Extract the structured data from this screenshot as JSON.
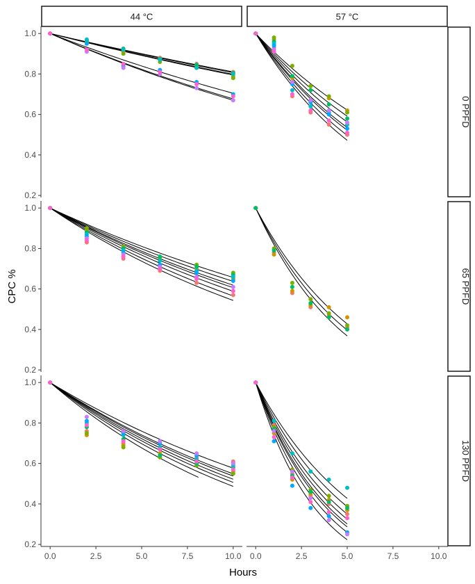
{
  "chart_data": {
    "type": "scatter",
    "title": "",
    "xlabel": "Hours",
    "ylabel": "CPC %",
    "xlim": [
      -0.5,
      10.5
    ],
    "ylim": [
      0.19,
      1.035
    ],
    "xticks": [
      0,
      2.5,
      5,
      7.5,
      10
    ],
    "x_tick_labels": [
      "0.0",
      "2.5",
      "5.0",
      "7.5",
      "10.0"
    ],
    "yticks": [
      0.2,
      0.4,
      0.6,
      0.8,
      1.0
    ],
    "y_tick_labels": [
      "0.2",
      "0.4",
      "0.6",
      "0.8",
      "1.0"
    ],
    "grid": false,
    "legend": "none",
    "col_facets": [
      "44 °C",
      "57 °C"
    ],
    "row_facets": [
      "0 PPFD",
      "65 PPFD",
      "130 PPFD"
    ],
    "point_colors": [
      "#F8766D",
      "#CD9600",
      "#7CAE00",
      "#00BE67",
      "#00BFC4",
      "#00A9FF",
      "#C77CFF",
      "#FF61CC"
    ],
    "panels": [
      {
        "col": 0,
        "row": 0,
        "x": [
          0,
          2,
          4,
          6,
          8,
          10
        ],
        "curve_end_x": 10,
        "curve_decay_rates": [
          0.021,
          0.0215,
          0.0225,
          0.023,
          0.035,
          0.039,
          0.04
        ],
        "points": [
          [
            1.0,
            0.96,
            0.92,
            0.88,
            0.85,
            0.81
          ],
          [
            1.0,
            0.955,
            0.91,
            0.87,
            0.84,
            0.79
          ],
          [
            1.0,
            0.95,
            0.9,
            0.86,
            0.83,
            0.78
          ],
          [
            1.0,
            0.965,
            0.925,
            0.875,
            0.845,
            0.805
          ],
          [
            1.0,
            0.97,
            0.92,
            0.87,
            0.83,
            0.8
          ],
          [
            1.0,
            0.95,
            0.84,
            0.82,
            0.76,
            0.7
          ],
          [
            1.0,
            0.91,
            0.83,
            0.8,
            0.73,
            0.67
          ],
          [
            1.0,
            0.92,
            0.85,
            0.81,
            0.75,
            0.69
          ]
        ]
      },
      {
        "col": 1,
        "row": 0,
        "x": [
          0,
          1,
          2,
          3,
          4,
          5
        ],
        "curve_end_x": 5,
        "curve_decay_rates": [
          0.095,
          0.105,
          0.115,
          0.125,
          0.13,
          0.14,
          0.15
        ],
        "points": [
          [
            1.0,
            0.93,
            0.69,
            0.61,
            0.55,
            0.5
          ],
          [
            1.0,
            0.97,
            0.78,
            0.72,
            0.68,
            0.62
          ],
          [
            1.0,
            0.98,
            0.84,
            0.74,
            0.69,
            0.61
          ],
          [
            1.0,
            0.96,
            0.79,
            0.72,
            0.65,
            0.58
          ],
          [
            1.0,
            0.95,
            0.72,
            0.64,
            0.61,
            0.55
          ],
          [
            1.0,
            0.94,
            0.75,
            0.66,
            0.6,
            0.53
          ],
          [
            1.0,
            0.92,
            0.76,
            0.67,
            0.62,
            0.56
          ],
          [
            1.0,
            0.91,
            0.7,
            0.62,
            0.57,
            0.51
          ]
        ]
      },
      {
        "col": 0,
        "row": 1,
        "x": [
          0,
          2,
          4,
          6,
          8,
          10
        ],
        "curve_end_x": 10,
        "curve_decay_rates": [
          0.042,
          0.045,
          0.048,
          0.05,
          0.053,
          0.057,
          0.061
        ],
        "points": [
          [
            1.0,
            0.83,
            0.75,
            0.69,
            0.63,
            0.57
          ],
          [
            1.0,
            0.89,
            0.8,
            0.74,
            0.7,
            0.65
          ],
          [
            1.0,
            0.9,
            0.81,
            0.75,
            0.72,
            0.68
          ],
          [
            1.0,
            0.88,
            0.8,
            0.76,
            0.71,
            0.67
          ],
          [
            1.0,
            0.87,
            0.79,
            0.74,
            0.69,
            0.66
          ],
          [
            1.0,
            0.86,
            0.78,
            0.72,
            0.68,
            0.64
          ],
          [
            1.0,
            0.85,
            0.77,
            0.71,
            0.66,
            0.61
          ],
          [
            1.0,
            0.84,
            0.76,
            0.7,
            0.65,
            0.59
          ]
        ]
      },
      {
        "col": 1,
        "row": 1,
        "x": [
          0,
          1,
          2,
          3,
          4,
          5
        ],
        "curve_end_x": 5,
        "curve_decay_rates": [
          0.17,
          0.185,
          0.2
        ],
        "points": [
          [
            1.0,
            0.78,
            0.58,
            0.51,
            0.47,
            0.41
          ],
          [
            1.0,
            0.77,
            0.59,
            0.52,
            0.51,
            0.46
          ],
          [
            1.0,
            0.8,
            0.63,
            0.55,
            0.48,
            0.42
          ],
          [
            1.0,
            0.79,
            0.61,
            0.53,
            0.46,
            0.4
          ]
        ]
      },
      {
        "col": 0,
        "row": 2,
        "x": [
          0,
          2,
          4,
          6,
          8,
          10
        ],
        "curve_end_x": 10,
        "curve_decay_rates": [
          0.055,
          0.06,
          0.062,
          0.065,
          0.068,
          0.072
        ],
        "curve_special": [
          {
            "rate": 0.078,
            "end_x": 8.1
          }
        ],
        "points": [
          [
            1.0,
            0.76,
            0.7,
            0.67,
            0.63,
            0.61
          ],
          [
            1.0,
            0.74,
            0.69,
            0.65,
            0.62,
            0.56
          ],
          [
            1.0,
            0.75,
            0.68,
            0.63,
            0.59,
            0.55
          ],
          [
            1.0,
            0.78,
            0.72,
            0.64,
            0.6,
            0.58
          ],
          [
            1.0,
            0.8,
            0.74,
            0.68,
            0.62,
            0.59
          ],
          [
            1.0,
            0.81,
            0.75,
            0.7,
            0.64,
            0.6
          ],
          [
            1.0,
            0.83,
            0.76,
            0.71,
            0.65,
            0.6
          ],
          [
            1.0,
            0.79,
            0.71,
            0.67,
            0.61,
            0.57
          ]
        ]
      },
      {
        "col": 1,
        "row": 2,
        "x": [
          0,
          1,
          2,
          3,
          4,
          5
        ],
        "curve_end_x": 5,
        "curve_decay_rates": [
          0.17,
          0.19,
          0.21,
          0.225,
          0.24,
          0.25,
          0.27,
          0.3
        ],
        "points": [
          [
            1.0,
            0.79,
            0.55,
            0.44,
            0.4,
            0.35
          ],
          [
            1.0,
            0.75,
            0.52,
            0.45,
            0.42,
            0.37
          ],
          [
            1.0,
            0.78,
            0.57,
            0.47,
            0.44,
            0.39
          ],
          [
            1.0,
            0.77,
            0.54,
            0.46,
            0.41,
            0.38
          ],
          [
            1.0,
            0.81,
            0.65,
            0.56,
            0.52,
            0.48
          ],
          [
            1.0,
            0.71,
            0.49,
            0.38,
            0.34,
            0.26
          ],
          [
            1.0,
            0.76,
            0.56,
            0.43,
            0.32,
            0.25
          ],
          [
            1.0,
            0.73,
            0.53,
            0.41,
            0.36,
            0.33
          ]
        ]
      }
    ]
  }
}
